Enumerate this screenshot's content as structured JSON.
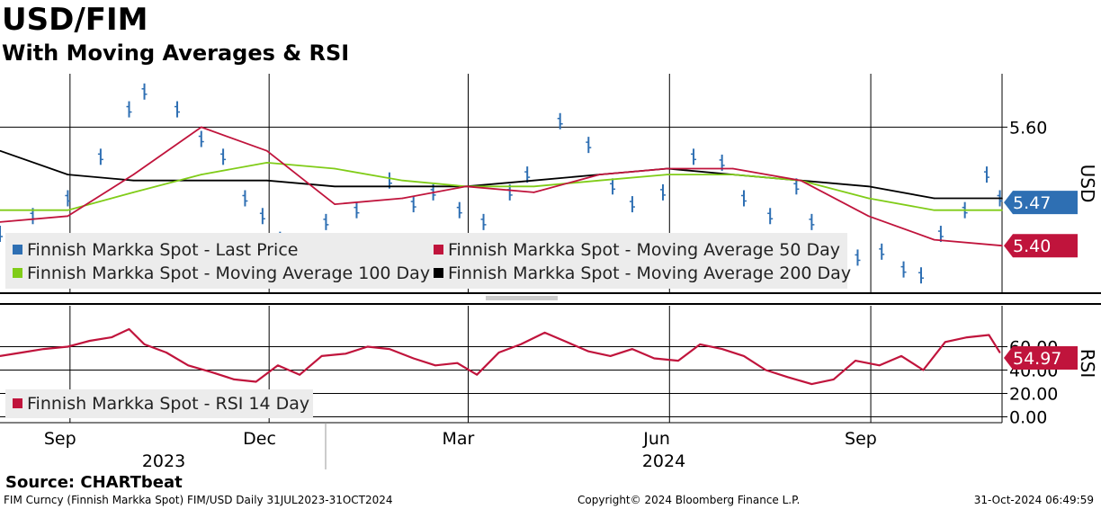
{
  "header": {
    "title": "USD/FIM",
    "subtitle": "With Moving Averages & RSI"
  },
  "footer": {
    "source": "Source: CHARTbeat",
    "description": "FIM Curncy (Finnish Markka Spot) FIM/USD  Daily 31JUL2023-31OCT2024",
    "copyright": "Copyright© 2024 Bloomberg Finance L.P.",
    "timestamp": "31-Oct-2024 06:49:59"
  },
  "colors": {
    "last_price": "#2e6fb3",
    "ma50": "#c0143c",
    "ma100": "#80cc18",
    "ma200": "#000000",
    "rsi": "#c0143c"
  },
  "chart_data": [
    {
      "type": "line",
      "panel": "price",
      "y_axis_title": "USD",
      "ylim": [
        5.32,
        5.69
      ],
      "y_ticks": [
        5.6
      ],
      "x_ticks": [
        "Sep",
        "Dec",
        "Mar",
        "Jun",
        "Sep"
      ],
      "year_labels": [
        "2023",
        "2024"
      ],
      "x_tick_dates": [
        "2023-09-01",
        "2023-12-01",
        "2024-03-01",
        "2024-06-01",
        "2024-09-01"
      ],
      "x_range": [
        "2023-07-31",
        "2024-10-31"
      ],
      "grid": true,
      "legend_placement": "bottom-left",
      "last_value_labels": [
        {
          "series": "Finnish Markka Spot - Last Price",
          "value": "5.47"
        },
        {
          "series": "Finnish Markka Spot - Moving Average 50 Day",
          "value": "5.40"
        }
      ],
      "series": [
        {
          "name": "Finnish Markka Spot - Last Price",
          "style": "ohlc-bars",
          "dates": [
            "2023-07-31",
            "2023-08-15",
            "2023-08-31",
            "2023-09-15",
            "2023-09-28",
            "2023-10-05",
            "2023-10-20",
            "2023-10-31",
            "2023-11-10",
            "2023-11-20",
            "2023-11-28",
            "2023-12-06",
            "2023-12-14",
            "2023-12-27",
            "2024-01-10",
            "2024-01-25",
            "2024-02-05",
            "2024-02-14",
            "2024-02-26",
            "2024-03-08",
            "2024-03-20",
            "2024-03-28",
            "2024-04-12",
            "2024-04-25",
            "2024-05-06",
            "2024-05-15",
            "2024-05-29",
            "2024-06-12",
            "2024-06-25",
            "2024-07-05",
            "2024-07-17",
            "2024-07-29",
            "2024-08-05",
            "2024-08-15",
            "2024-08-26",
            "2024-09-06",
            "2024-09-16",
            "2024-09-24",
            "2024-10-03",
            "2024-10-14",
            "2024-10-24",
            "2024-10-30"
          ],
          "values": [
            5.42,
            5.45,
            5.48,
            5.55,
            5.63,
            5.66,
            5.63,
            5.58,
            5.55,
            5.48,
            5.45,
            5.41,
            5.38,
            5.44,
            5.46,
            5.51,
            5.47,
            5.49,
            5.46,
            5.44,
            5.49,
            5.52,
            5.61,
            5.57,
            5.5,
            5.47,
            5.49,
            5.55,
            5.54,
            5.48,
            5.45,
            5.5,
            5.44,
            5.4,
            5.38,
            5.39,
            5.36,
            5.35,
            5.42,
            5.46,
            5.52,
            5.48
          ]
        },
        {
          "name": "Finnish Markka Spot - Moving Average 50 Day",
          "dates": [
            "2023-07-31",
            "2023-08-31",
            "2023-09-30",
            "2023-10-31",
            "2023-11-30",
            "2023-12-31",
            "2024-01-31",
            "2024-02-29",
            "2024-03-31",
            "2024-04-30",
            "2024-05-31",
            "2024-06-30",
            "2024-07-31",
            "2024-08-31",
            "2024-09-30",
            "2024-10-31"
          ],
          "values": [
            5.44,
            5.45,
            5.52,
            5.6,
            5.56,
            5.47,
            5.48,
            5.5,
            5.49,
            5.52,
            5.53,
            5.53,
            5.51,
            5.45,
            5.41,
            5.4
          ]
        },
        {
          "name": "Finnish Markka Spot - Moving Average 100 Day",
          "dates": [
            "2023-07-31",
            "2023-08-31",
            "2023-09-30",
            "2023-10-31",
            "2023-11-30",
            "2023-12-31",
            "2024-01-31",
            "2024-02-29",
            "2024-03-31",
            "2024-04-30",
            "2024-05-31",
            "2024-06-30",
            "2024-07-31",
            "2024-08-31",
            "2024-09-30",
            "2024-10-31"
          ],
          "values": [
            5.46,
            5.46,
            5.49,
            5.52,
            5.54,
            5.53,
            5.51,
            5.5,
            5.5,
            5.51,
            5.52,
            5.52,
            5.51,
            5.48,
            5.46,
            5.46
          ]
        },
        {
          "name": "Finnish Markka Spot - Moving Average 200 Day",
          "dates": [
            "2023-07-31",
            "2023-08-31",
            "2023-09-30",
            "2023-10-31",
            "2023-11-30",
            "2023-12-31",
            "2024-01-31",
            "2024-02-29",
            "2024-03-31",
            "2024-04-30",
            "2024-05-31",
            "2024-06-30",
            "2024-07-31",
            "2024-08-31",
            "2024-09-30",
            "2024-10-31"
          ],
          "values": [
            5.56,
            5.52,
            5.51,
            5.51,
            5.51,
            5.5,
            5.5,
            5.5,
            5.51,
            5.52,
            5.53,
            5.52,
            5.51,
            5.5,
            5.48,
            5.48
          ]
        }
      ]
    },
    {
      "type": "line",
      "panel": "rsi",
      "y_axis_title": "RSI",
      "ylim": [
        -5,
        95
      ],
      "y_ticks": [
        "0.00",
        "20.00",
        "40.00",
        "60.00"
      ],
      "grid": true,
      "legend_placement": "bottom-left",
      "last_value_labels": [
        {
          "series": "Finnish Markka Spot - RSI 14 Day",
          "value": "54.97"
        }
      ],
      "series": [
        {
          "name": "Finnish Markka Spot - RSI 14 Day",
          "dates": [
            "2023-07-31",
            "2023-08-10",
            "2023-08-20",
            "2023-08-31",
            "2023-09-10",
            "2023-09-20",
            "2023-09-28",
            "2023-10-05",
            "2023-10-15",
            "2023-10-25",
            "2023-11-05",
            "2023-11-15",
            "2023-11-25",
            "2023-12-05",
            "2023-12-15",
            "2023-12-25",
            "2024-01-05",
            "2024-01-15",
            "2024-01-25",
            "2024-02-05",
            "2024-02-15",
            "2024-02-25",
            "2024-03-05",
            "2024-03-15",
            "2024-03-25",
            "2024-04-05",
            "2024-04-15",
            "2024-04-25",
            "2024-05-05",
            "2024-05-15",
            "2024-05-25",
            "2024-06-05",
            "2024-06-15",
            "2024-06-25",
            "2024-07-05",
            "2024-07-15",
            "2024-07-25",
            "2024-08-05",
            "2024-08-15",
            "2024-08-25",
            "2024-09-05",
            "2024-09-15",
            "2024-09-25",
            "2024-10-05",
            "2024-10-15",
            "2024-10-25",
            "2024-10-30"
          ],
          "values": [
            52,
            55,
            58,
            60,
            65,
            68,
            75,
            62,
            55,
            44,
            38,
            32,
            30,
            44,
            36,
            52,
            54,
            60,
            58,
            50,
            44,
            46,
            36,
            55,
            62,
            72,
            64,
            56,
            52,
            58,
            50,
            48,
            62,
            58,
            52,
            40,
            34,
            28,
            32,
            48,
            44,
            52,
            40,
            64,
            68,
            70,
            55
          ]
        }
      ]
    }
  ]
}
